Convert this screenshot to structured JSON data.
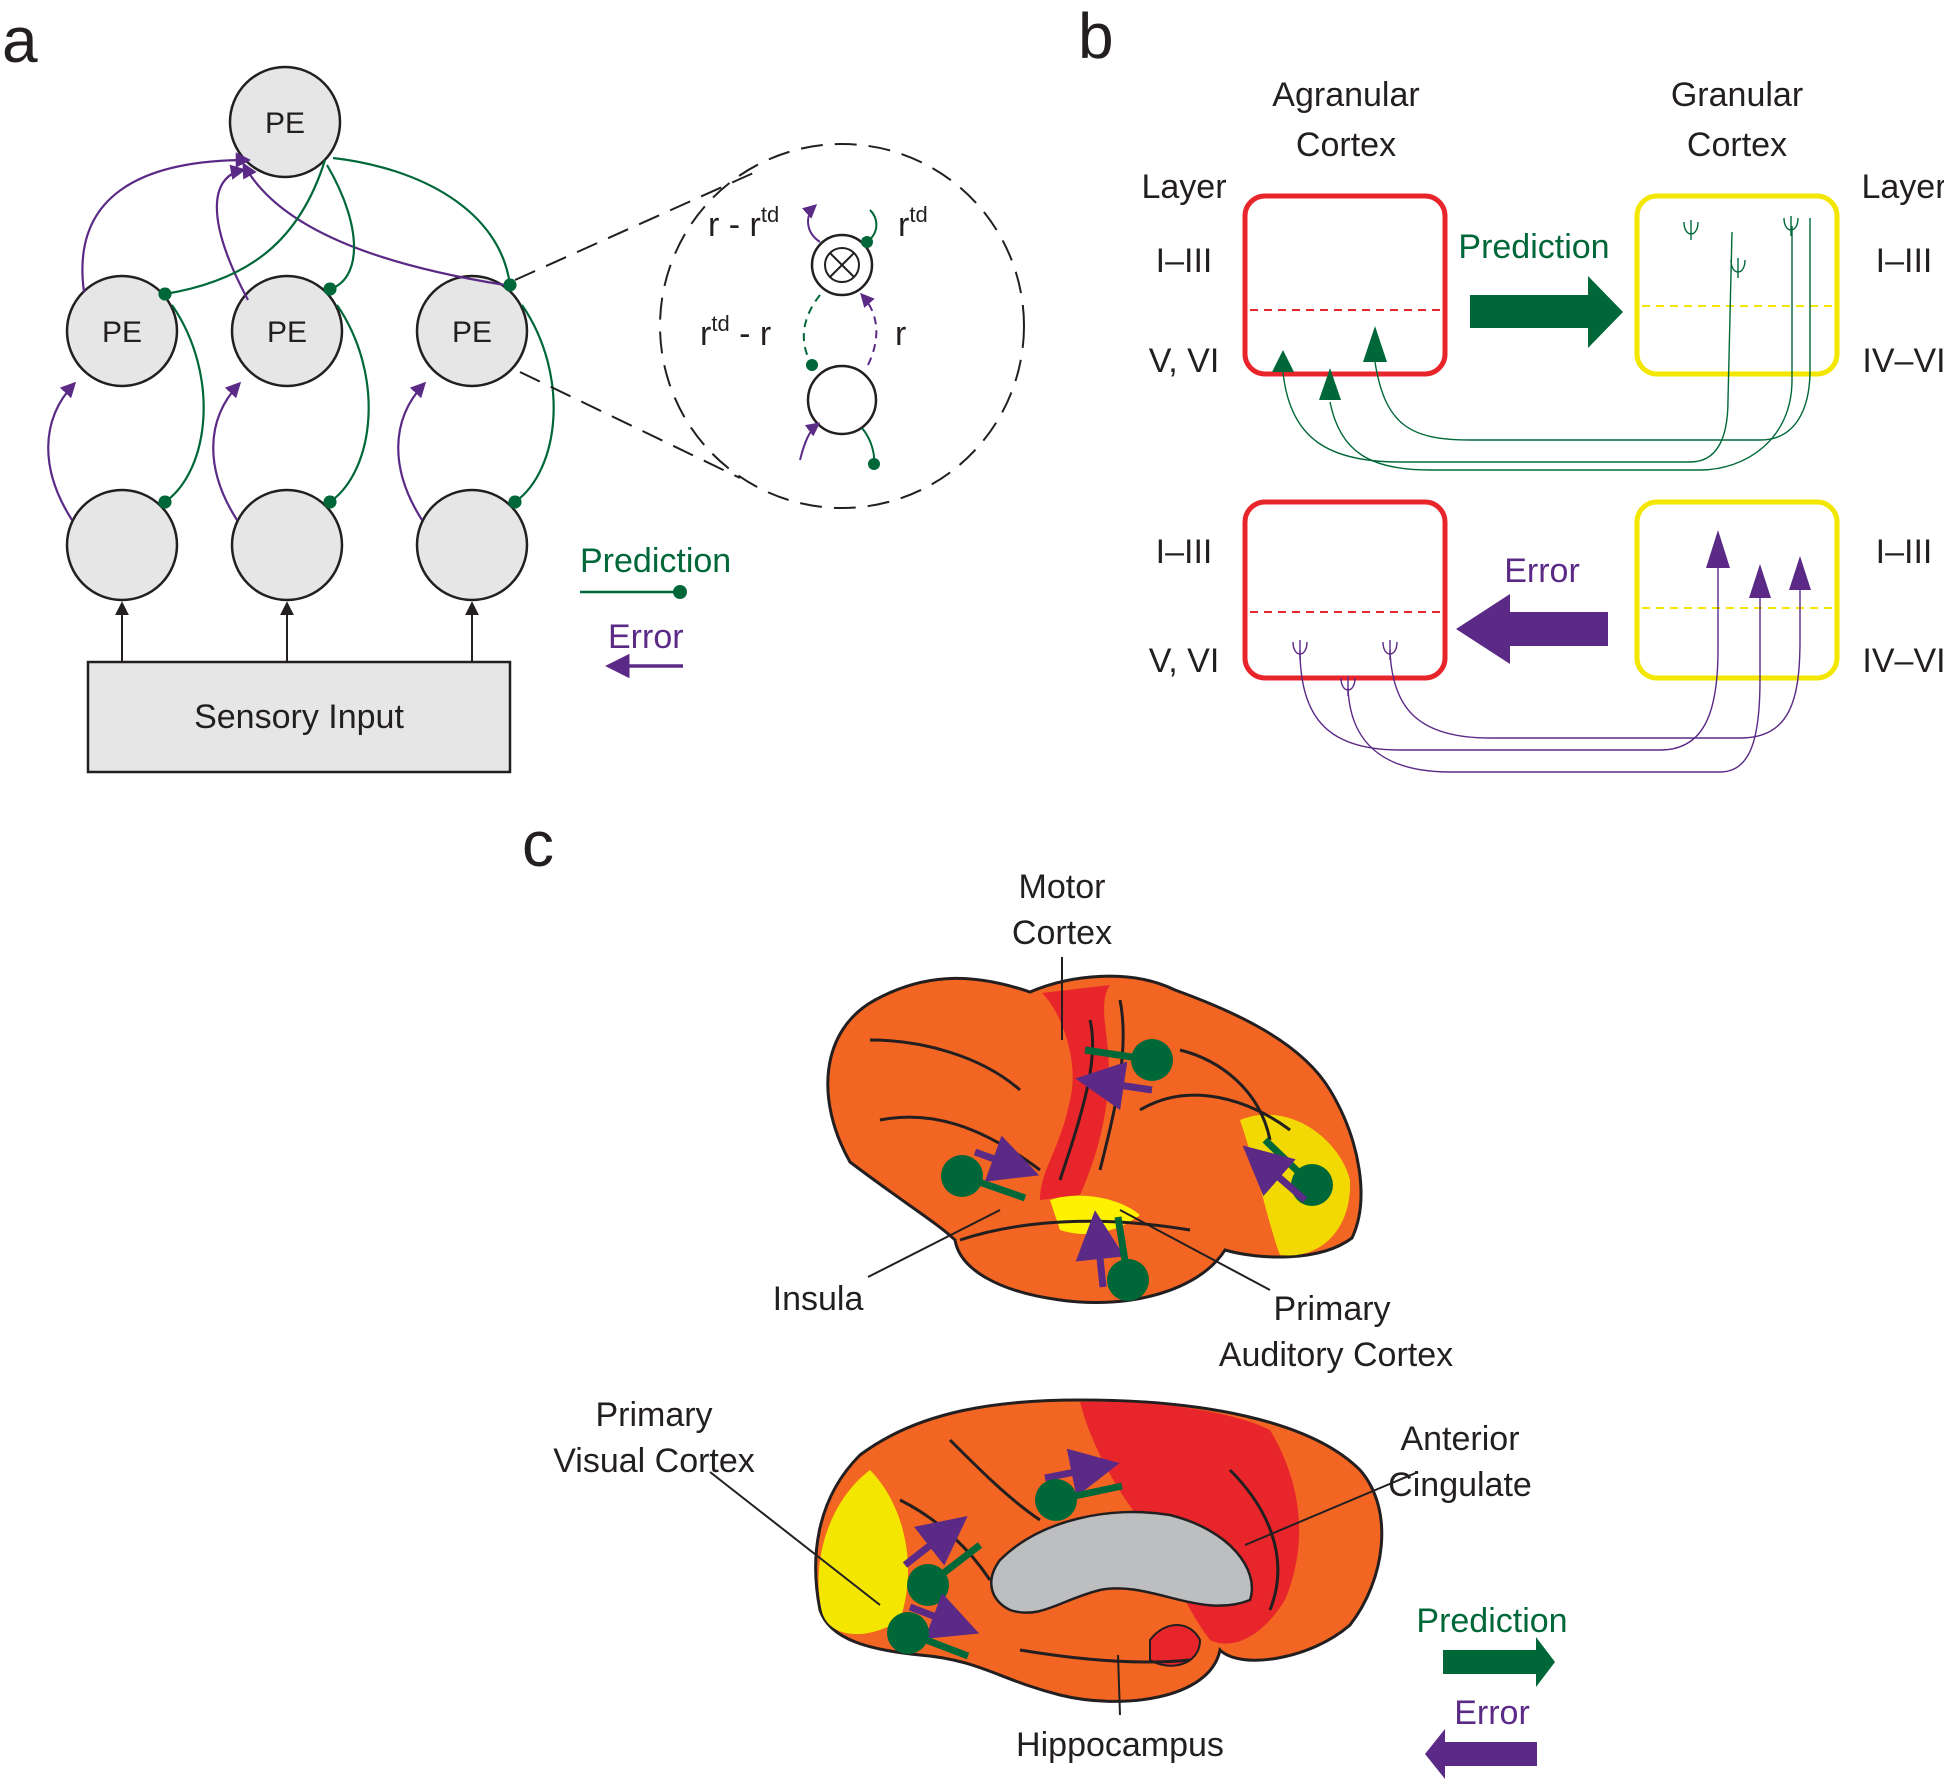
{
  "colors": {
    "prediction": "#006838",
    "error": "#5b2a86",
    "agranular": "#e8252b",
    "granular": "#f3e600",
    "node_fill": "#e6e6e6",
    "outline": "#231f20"
  },
  "panel_a": {
    "panel_label": "a",
    "pe_label": "PE",
    "sensory_input": "Sensory Input",
    "zoom": {
      "top_left": "r - r",
      "top_left_sup": "td",
      "top_right": "r",
      "top_right_sup": "td",
      "mid_left": "r",
      "mid_left_sup": "td",
      "mid_left_tail": " - r",
      "mid_right": "r"
    },
    "legend": {
      "prediction": "Prediction",
      "error": "Error"
    }
  },
  "panel_b": {
    "panel_label": "b",
    "agranular_title": [
      "Agranular",
      "Cortex"
    ],
    "granular_title": [
      "Granular",
      "Cortex"
    ],
    "layer_header": "Layer",
    "layers_left": [
      "I–III",
      "V, VI",
      "I–III",
      "V, VI"
    ],
    "layers_right": [
      "I–III",
      "IV–VI",
      "I–III",
      "IV–VI"
    ],
    "arrow_prediction": "Prediction",
    "arrow_error": "Error"
  },
  "panel_c": {
    "panel_label": "c",
    "motor_cortex": [
      "Motor",
      "Cortex"
    ],
    "insula": "Insula",
    "primary_auditory": [
      "Primary",
      "Auditory Cortex"
    ],
    "primary_visual": [
      "Primary",
      "Visual Cortex"
    ],
    "anterior_cingulate": [
      "Anterior",
      "Cingulate"
    ],
    "hippocampus": "Hippocampus",
    "legend": {
      "prediction": "Prediction",
      "error": "Error"
    }
  }
}
